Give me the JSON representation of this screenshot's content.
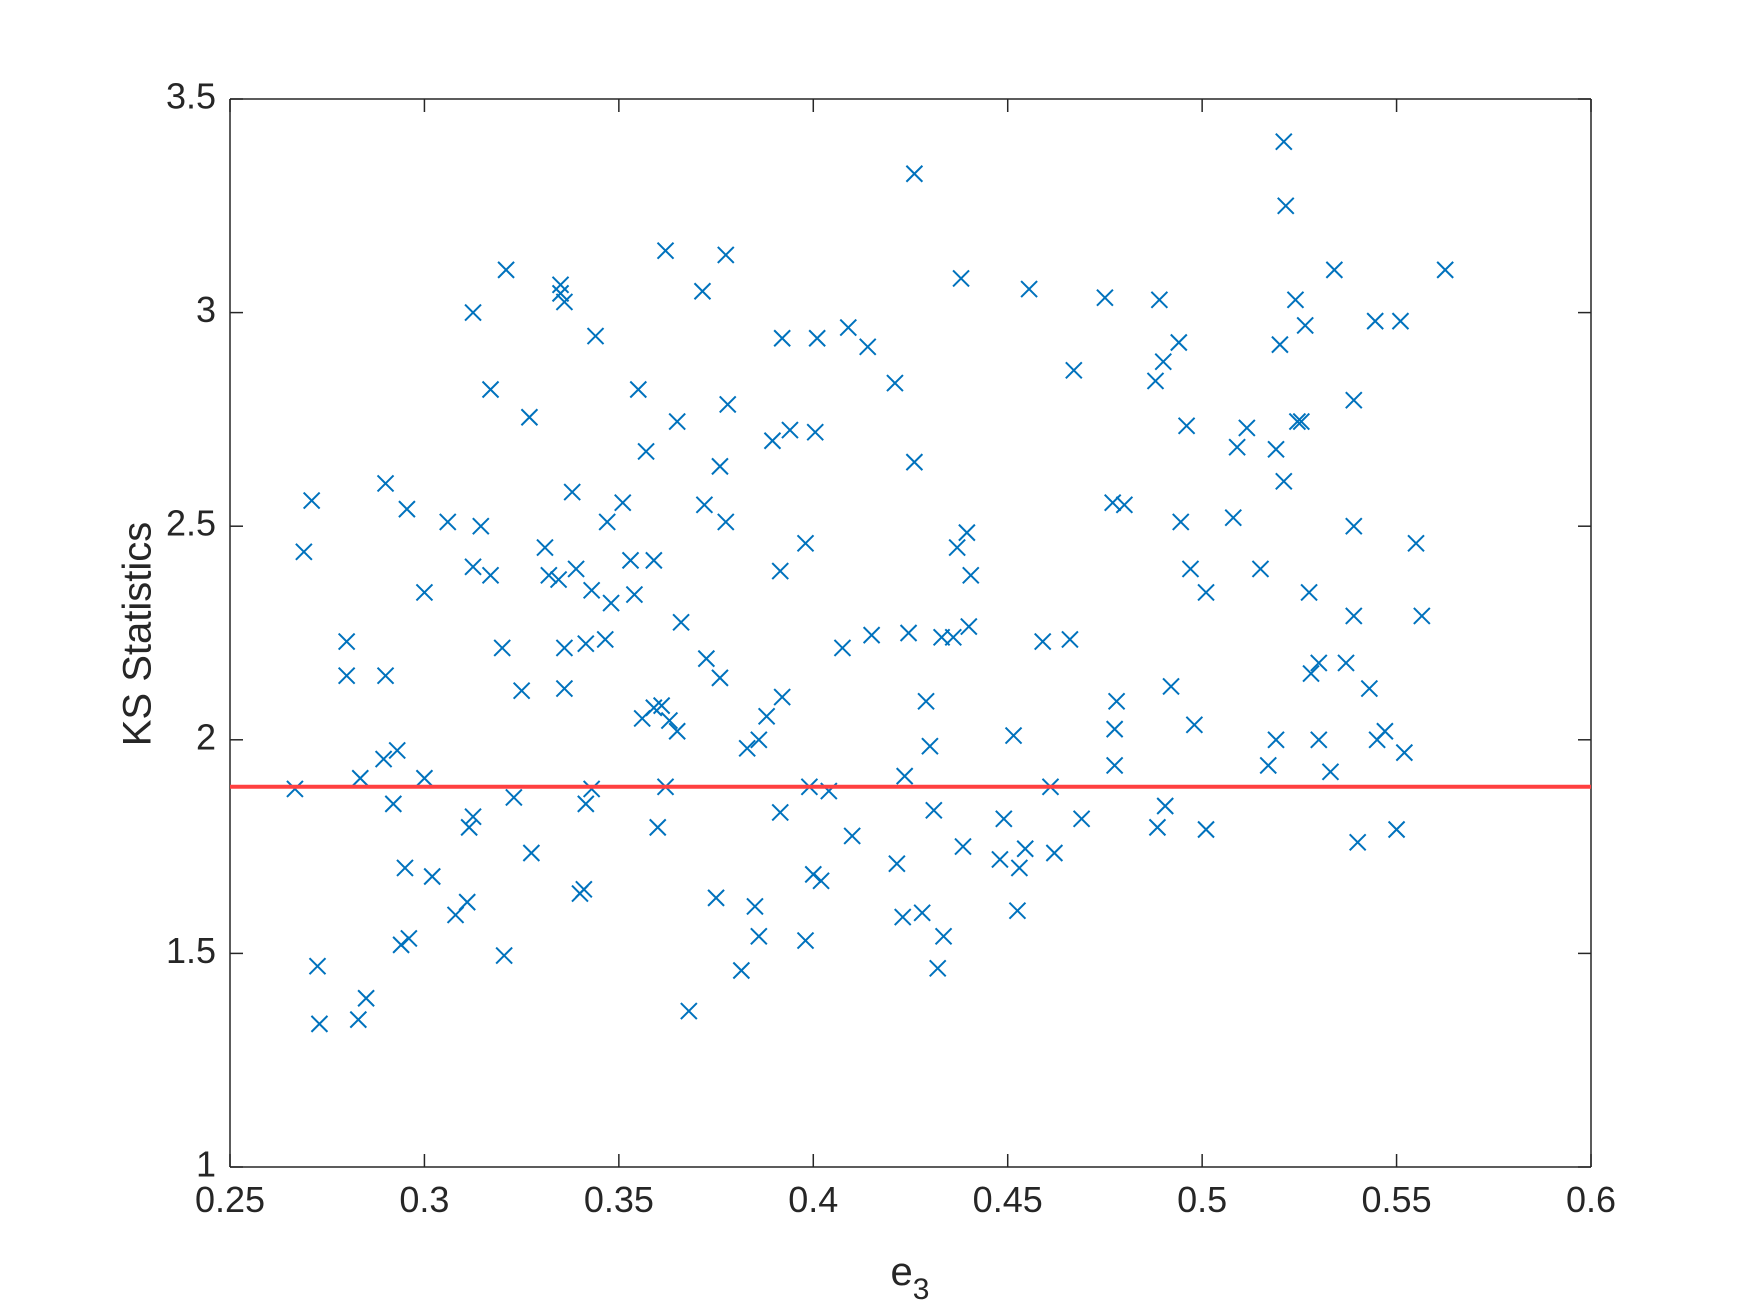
{
  "chart_data": {
    "type": "scatter",
    "xlabel": {
      "text": "e",
      "subscript": "3"
    },
    "ylabel": "KS Statistics",
    "marker": "x",
    "color": "#0072bd",
    "hline": {
      "value": 1.89,
      "color": "#ff4040"
    },
    "xlim": [
      0.25,
      0.6
    ],
    "ylim": [
      1,
      3.5
    ],
    "xticks": [
      0.25,
      0.3,
      0.35,
      0.4,
      0.45,
      0.5,
      0.55,
      0.6
    ],
    "yticks": [
      1,
      1.5,
      2,
      2.5,
      3,
      3.5
    ],
    "box": true,
    "x": [
      0.2667,
      0.269,
      0.271,
      0.2725,
      0.273,
      0.28,
      0.28,
      0.283,
      0.2835,
      0.285,
      0.2895,
      0.29,
      0.29,
      0.292,
      0.293,
      0.294,
      0.295,
      0.2955,
      0.296,
      0.3,
      0.3,
      0.302,
      0.306,
      0.308,
      0.311,
      0.3115,
      0.3125,
      0.3125,
      0.3125,
      0.3145,
      0.317,
      0.317,
      0.32,
      0.3205,
      0.321,
      0.323,
      0.325,
      0.327,
      0.3275,
      0.331,
      0.332,
      0.3345,
      0.335,
      0.335,
      0.336,
      0.336,
      0.336,
      0.338,
      0.339,
      0.34,
      0.341,
      0.3415,
      0.3415,
      0.343,
      0.344,
      0.343,
      0.3465,
      0.347,
      0.348,
      0.351,
      0.353,
      0.354,
      0.355,
      0.356,
      0.357,
      0.359,
      0.359,
      0.36,
      0.361,
      0.362,
      0.362,
      0.363,
      0.365,
      0.365,
      0.366,
      0.368,
      0.3715,
      0.372,
      0.3725,
      0.375,
      0.376,
      0.376,
      0.3775,
      0.3775,
      0.378,
      0.3815,
      0.383,
      0.385,
      0.386,
      0.386,
      0.388,
      0.3895,
      0.3915,
      0.3915,
      0.392,
      0.392,
      0.394,
      0.398,
      0.398,
      0.399,
      0.4,
      0.401,
      0.4005,
      0.402,
      0.404,
      0.4075,
      0.409,
      0.41,
      0.414,
      0.415,
      0.421,
      0.4215,
      0.423,
      0.4235,
      0.4245,
      0.426,
      0.426,
      0.428,
      0.429,
      0.43,
      0.431,
      0.432,
      0.4335,
      0.433,
      0.436,
      0.437,
      0.438,
      0.4385,
      0.4395,
      0.4405,
      0.44,
      0.448,
      0.449,
      0.4515,
      0.4525,
      0.453,
      0.4545,
      0.4555,
      0.459,
      0.461,
      0.462,
      0.466,
      0.467,
      0.469,
      0.475,
      0.477,
      0.4775,
      0.4775,
      0.478,
      0.48,
      0.488,
      0.4885,
      0.489,
      0.49,
      0.4905,
      0.492,
      0.494,
      0.4945,
      0.496,
      0.497,
      0.498,
      0.501,
      0.501,
      0.508,
      0.509,
      0.5115,
      0.515,
      0.517,
      0.519,
      0.519,
      0.52,
      0.521,
      0.521,
      0.5215,
      0.524,
      0.5245,
      0.5255,
      0.5265,
      0.5275,
      0.528,
      0.53,
      0.53,
      0.533,
      0.534,
      0.537,
      0.539,
      0.539,
      0.539,
      0.54,
      0.543,
      0.5445,
      0.545,
      0.547,
      0.55,
      0.551,
      0.552,
      0.555,
      0.5565,
      0.5625
    ],
    "values": [
      1.885,
      2.44,
      2.56,
      1.47,
      1.335,
      2.23,
      2.15,
      1.345,
      1.91,
      1.395,
      1.955,
      2.6,
      2.15,
      1.85,
      1.975,
      1.52,
      1.7,
      2.54,
      1.535,
      2.345,
      1.91,
      1.68,
      2.51,
      1.59,
      1.62,
      1.795,
      1.82,
      3.0,
      2.405,
      2.5,
      2.82,
      2.385,
      2.215,
      1.495,
      3.1,
      1.865,
      2.115,
      2.755,
      1.735,
      2.45,
      2.385,
      2.375,
      3.065,
      3.045,
      2.215,
      2.12,
      3.025,
      2.58,
      2.4,
      1.64,
      1.65,
      2.225,
      1.85,
      1.885,
      2.945,
      2.35,
      2.235,
      2.51,
      2.32,
      2.555,
      2.42,
      2.34,
      2.82,
      2.05,
      2.675,
      2.42,
      2.075,
      1.795,
      2.08,
      3.145,
      1.89,
      2.045,
      2.745,
      2.02,
      2.275,
      1.365,
      3.05,
      2.55,
      2.19,
      1.63,
      2.64,
      2.145,
      3.135,
      2.51,
      2.785,
      1.46,
      1.98,
      1.61,
      1.54,
      2.0,
      2.055,
      2.7,
      2.395,
      1.83,
      2.94,
      2.1,
      2.725,
      2.46,
      1.53,
      1.89,
      1.685,
      2.94,
      2.72,
      1.67,
      1.88,
      2.215,
      2.965,
      1.775,
      2.92,
      2.245,
      2.835,
      1.71,
      1.585,
      1.915,
      2.25,
      3.325,
      2.65,
      1.595,
      2.09,
      1.985,
      1.835,
      1.465,
      1.54,
      2.24,
      2.24,
      2.45,
      3.08,
      1.75,
      2.485,
      2.385,
      2.265,
      1.72,
      1.815,
      2.01,
      1.6,
      1.7,
      1.745,
      3.055,
      2.23,
      1.89,
      1.735,
      2.235,
      2.865,
      1.815,
      3.035,
      2.555,
      1.94,
      2.025,
      2.09,
      2.55,
      2.84,
      1.795,
      3.03,
      2.885,
      1.845,
      2.125,
      2.93,
      2.51,
      2.735,
      2.4,
      2.035,
      2.345,
      1.79,
      2.52,
      2.685,
      2.73,
      2.4,
      1.94,
      2.68,
      2.0,
      2.925,
      2.605,
      3.4,
      3.25,
      3.03,
      2.745,
      2.745,
      2.97,
      2.345,
      2.155,
      2.0,
      2.18,
      1.925,
      3.1,
      2.18,
      2.795,
      2.5,
      2.29,
      1.76,
      2.12,
      2.98,
      2.0,
      2.02,
      1.79,
      2.98,
      1.97,
      2.46,
      2.29,
      3.1
    ]
  }
}
